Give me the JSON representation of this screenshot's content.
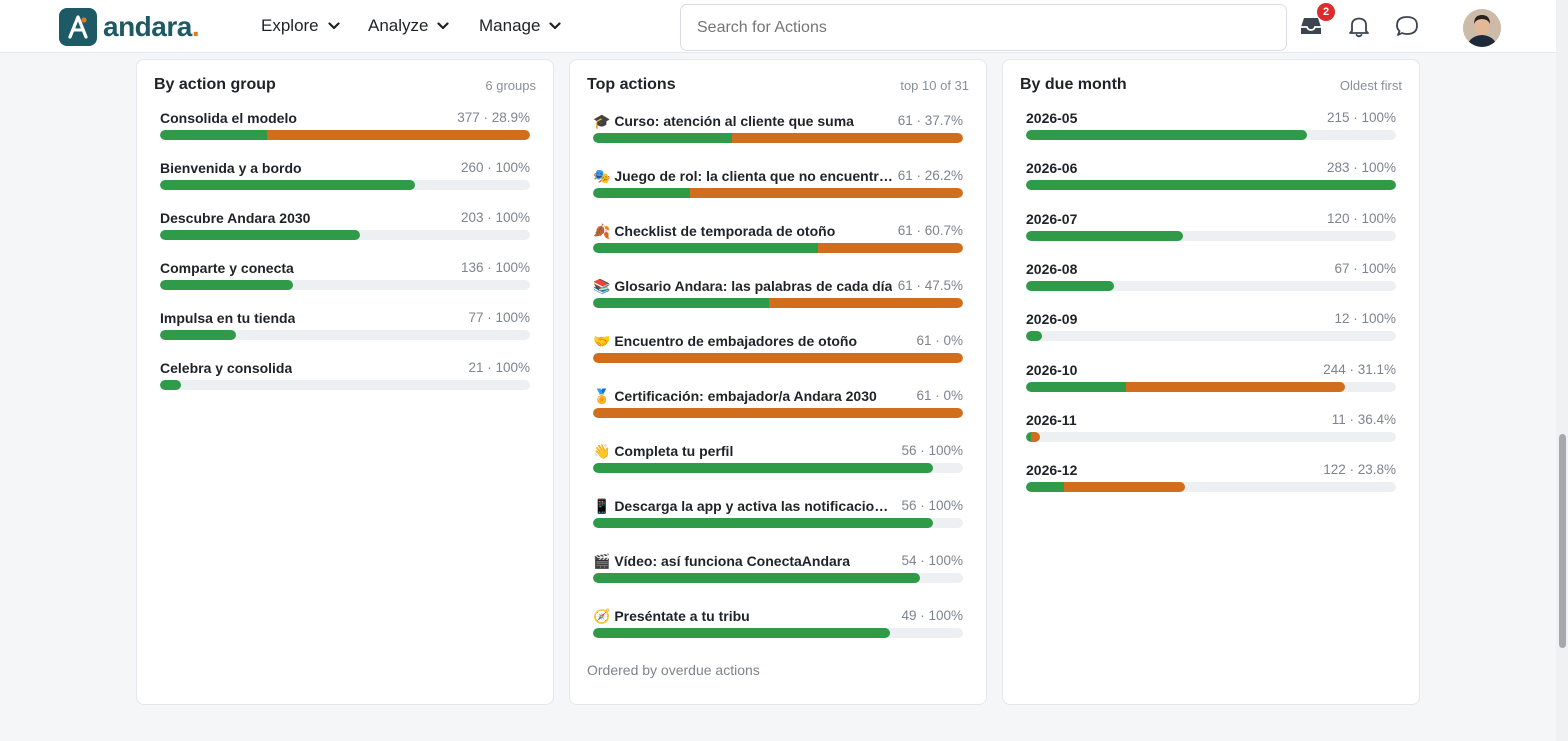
{
  "brand": {
    "name": "andara",
    "dot": ".",
    "mark_color": "#1d5a66",
    "accent": "#e07a1f"
  },
  "nav": {
    "items": [
      {
        "label": "Explore"
      },
      {
        "label": "Analyze"
      },
      {
        "label": "Manage"
      }
    ]
  },
  "search": {
    "placeholder": "Search for Actions",
    "value": ""
  },
  "header_icons": {
    "inbox": {
      "icon": "inbox-icon",
      "badge": "2"
    },
    "notifications": {
      "icon": "bell-icon"
    },
    "messages": {
      "icon": "chat-bubble-icon"
    },
    "avatar": {
      "icon": "user-avatar"
    }
  },
  "colors": {
    "completed": "#2f9a47",
    "overdue": "#d16e1e",
    "track": "#edf0f3"
  },
  "cards": {
    "by_group": {
      "title": "By action group",
      "meta": "6 groups",
      "rows": [
        {
          "label": "Consolida el modelo",
          "value": "377 · 28.9%",
          "green": 0.29,
          "orange": 0.71
        },
        {
          "label": "Bienvenida y a bordo",
          "value": "260 · 100%",
          "green": 0.69,
          "orange": 0
        },
        {
          "label": "Descubre Andara 2030",
          "value": "203 · 100%",
          "green": 0.54,
          "orange": 0
        },
        {
          "label": "Comparte y conecta",
          "value": "136 · 100%",
          "green": 0.36,
          "orange": 0
        },
        {
          "label": "Impulsa en tu tienda",
          "value": "77 · 100%",
          "green": 0.205,
          "orange": 0
        },
        {
          "label": "Celebra y consolida",
          "value": "21 · 100%",
          "green": 0.056,
          "orange": 0
        }
      ]
    },
    "top_actions": {
      "title": "Top actions",
      "meta": "top 10 of 31",
      "footer": "Ordered by overdue actions",
      "rows": [
        {
          "label": "🎓 Curso: atención al cliente que suma",
          "value": "61 · 37.7%",
          "green": 0.377,
          "orange": 0.623
        },
        {
          "label": "🎭 Juego de rol: la clienta que no encuentra ...",
          "value": "61 · 26.2%",
          "green": 0.262,
          "orange": 0.738
        },
        {
          "label": "🍂 Checklist de temporada de otoño",
          "value": "61 · 60.7%",
          "green": 0.607,
          "orange": 0.393
        },
        {
          "label": "📚 Glosario Andara: las palabras de cada día",
          "value": "61 · 47.5%",
          "green": 0.475,
          "orange": 0.525
        },
        {
          "label": "🤝 Encuentro de embajadores de otoño",
          "value": "61 · 0%",
          "green": 0,
          "orange": 1
        },
        {
          "label": "🏅 Certificación: embajador/a Andara 2030",
          "value": "61 · 0%",
          "green": 0,
          "orange": 1
        },
        {
          "label": "👋 Completa tu perfil",
          "value": "56 · 100%",
          "green": 0.918,
          "orange": 0
        },
        {
          "label": "📱 Descarga la app y activa las notificaciones",
          "value": "56 · 100%",
          "green": 0.918,
          "orange": 0
        },
        {
          "label": "🎬 Vídeo: así funciona ConectaAndara",
          "value": "54 · 100%",
          "green": 0.885,
          "orange": 0
        },
        {
          "label": "🧭 Preséntate a tu tribu",
          "value": "49 · 100%",
          "green": 0.803,
          "orange": 0
        }
      ]
    },
    "by_month": {
      "title": "By due month",
      "meta": "Oldest first",
      "rows": [
        {
          "label": "2026-05",
          "value": "215 · 100%",
          "green": 0.76,
          "orange": 0
        },
        {
          "label": "2026-06",
          "value": "283 · 100%",
          "green": 1.0,
          "orange": 0
        },
        {
          "label": "2026-07",
          "value": "120 · 100%",
          "green": 0.424,
          "orange": 0
        },
        {
          "label": "2026-08",
          "value": "67 · 100%",
          "green": 0.237,
          "orange": 0
        },
        {
          "label": "2026-09",
          "value": "12 · 100%",
          "green": 0.042,
          "orange": 0
        },
        {
          "label": "2026-10",
          "value": "244 · 31.1%",
          "green": 0.27,
          "orange": 0.593
        },
        {
          "label": "2026-11",
          "value": "11 · 36.4%",
          "green": 0.014,
          "orange": 0.025
        },
        {
          "label": "2026-12",
          "value": "122 · 23.8%",
          "green": 0.103,
          "orange": 0.328
        }
      ]
    }
  }
}
